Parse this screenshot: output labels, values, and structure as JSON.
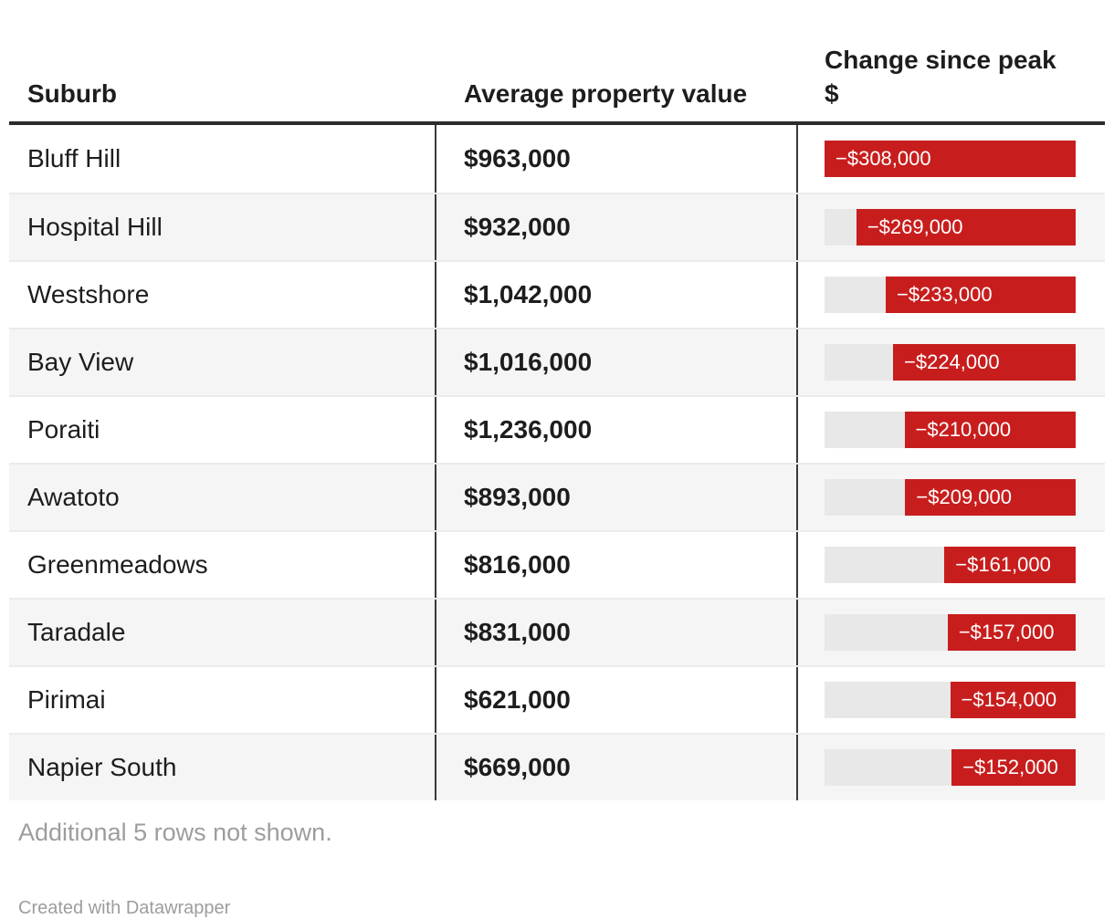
{
  "colors": {
    "bar_red": "#c71e1d",
    "bar_track": "#e8e8e8",
    "row_alt": "#f5f5f5",
    "header_rule": "#2b2b2b",
    "column_rule": "#3a3a3a",
    "muted_text": "#9d9d9d"
  },
  "chart_data": {
    "type": "table",
    "title": "",
    "columns": [
      "Suburb",
      "Average property value",
      "Change since peak $"
    ],
    "bar_axis": {
      "max_abs": 308000,
      "anchor": "right",
      "bar_color": "#c71e1d"
    },
    "rows": [
      {
        "suburb": "Bluff Hill",
        "value": 963000,
        "value_label": "$963,000",
        "change": -308000,
        "change_label": "−$308,000"
      },
      {
        "suburb": "Hospital Hill",
        "value": 932000,
        "value_label": "$932,000",
        "change": -269000,
        "change_label": "−$269,000"
      },
      {
        "suburb": "Westshore",
        "value": 1042000,
        "value_label": "$1,042,000",
        "change": -233000,
        "change_label": "−$233,000"
      },
      {
        "suburb": "Bay View",
        "value": 1016000,
        "value_label": "$1,016,000",
        "change": -224000,
        "change_label": "−$224,000"
      },
      {
        "suburb": "Poraiti",
        "value": 1236000,
        "value_label": "$1,236,000",
        "change": -210000,
        "change_label": "−$210,000"
      },
      {
        "suburb": "Awatoto",
        "value": 893000,
        "value_label": "$893,000",
        "change": -209000,
        "change_label": "−$209,000"
      },
      {
        "suburb": "Greenmeadows",
        "value": 816000,
        "value_label": "$816,000",
        "change": -161000,
        "change_label": "−$161,000"
      },
      {
        "suburb": "Taradale",
        "value": 831000,
        "value_label": "$831,000",
        "change": -157000,
        "change_label": "−$157,000"
      },
      {
        "suburb": "Pirimai",
        "value": 621000,
        "value_label": "$621,000",
        "change": -154000,
        "change_label": "−$154,000"
      },
      {
        "suburb": "Napier South",
        "value": 669000,
        "value_label": "$669,000",
        "change": -152000,
        "change_label": "−$152,000"
      }
    ]
  },
  "footer": {
    "note": "Additional 5 rows not shown.",
    "credit": "Created with Datawrapper"
  }
}
